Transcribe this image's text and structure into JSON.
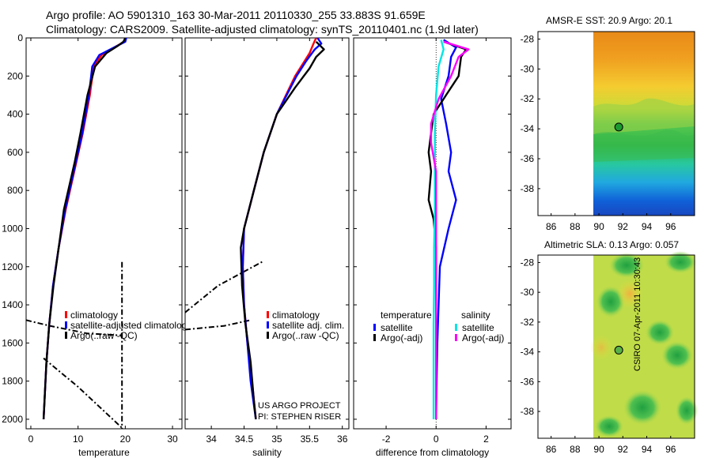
{
  "header": {
    "line1": "Argo profile: AO 5901310_163 30-Mar-2011 20110330_255 33.883S 91.659E",
    "line2": "Climatology: CARS2009. Satellite-adjusted climatology: synTS_20110401.nc (1.9d later)"
  },
  "credits": {
    "line1": "US ARGO PROJECT",
    "line2": "PI: STEPHEN RISER"
  },
  "timestamp": "CSIRO 07-Apr-2011 10:30:43",
  "maps": {
    "sst": {
      "title": "AMSR-E SST: 20.9 Argo: 20.1",
      "xticks": [
        "86",
        "88",
        "90",
        "92",
        "94",
        "96"
      ],
      "yticks": [
        "-28",
        "-30",
        "-32",
        "-34",
        "-36",
        "-38"
      ],
      "float_lon": 91.659,
      "float_lat": -33.883
    },
    "sla": {
      "title": "Altimetric SLA: 0.13 Argo: 0.057",
      "xticks": [
        "86",
        "88",
        "90",
        "92",
        "94",
        "96"
      ],
      "yticks": [
        "-28",
        "-30",
        "-32",
        "-34",
        "-36",
        "-38"
      ],
      "float_lon": 91.659,
      "float_lat": -33.883
    }
  },
  "colors": {
    "climatology": "#ff0000",
    "satellite": "#0000ff",
    "argo": "#000000",
    "sat_salinity": "#00e5e5",
    "argo_salinity": "#ff00ff"
  },
  "chart_data": [
    {
      "type": "line",
      "xlabel": "temperature",
      "xlim": [
        -1,
        32
      ],
      "ylim": [
        2050,
        0
      ],
      "xticks": [
        0,
        10,
        20,
        30
      ],
      "yticks": [
        0,
        200,
        400,
        600,
        800,
        1000,
        1200,
        1400,
        1600,
        1800,
        2000
      ],
      "legend": [
        "climatology",
        "satellite-adjusted climatology",
        "Argo(..raw -QC)"
      ],
      "series": [
        {
          "name": "climatology",
          "color": "#ff0000",
          "points": [
            [
              20.0,
              0
            ],
            [
              19.8,
              20
            ],
            [
              18.0,
              45
            ],
            [
              15.0,
              90
            ],
            [
              13.3,
              150
            ],
            [
              12.5,
              300
            ],
            [
              11.0,
              500
            ],
            [
              9.2,
              700
            ],
            [
              7.4,
              900
            ],
            [
              5.9,
              1100
            ],
            [
              4.7,
              1300
            ],
            [
              3.9,
              1500
            ],
            [
              3.3,
              1700
            ],
            [
              2.9,
              1900
            ],
            [
              2.7,
              2000
            ]
          ]
        },
        {
          "name": "satellite-adjusted climatology",
          "color": "#0000ff",
          "points": [
            [
              20.2,
              0
            ],
            [
              20.0,
              20
            ],
            [
              18.0,
              45
            ],
            [
              14.5,
              90
            ],
            [
              13.0,
              150
            ],
            [
              12.3,
              300
            ],
            [
              10.9,
              500
            ],
            [
              9.1,
              700
            ],
            [
              7.3,
              900
            ],
            [
              5.9,
              1100
            ],
            [
              4.7,
              1300
            ],
            [
              3.9,
              1500
            ],
            [
              3.3,
              1700
            ],
            [
              2.9,
              1900
            ],
            [
              2.7,
              2000
            ]
          ]
        },
        {
          "name": "Argo(..raw -QC)",
          "color": "#000000",
          "points": [
            [
              20.0,
              0
            ],
            [
              19.6,
              20
            ],
            [
              18.5,
              40
            ],
            [
              16.0,
              80
            ],
            [
              13.6,
              150
            ],
            [
              12.0,
              300
            ],
            [
              10.5,
              500
            ],
            [
              9.3,
              650
            ],
            [
              7.0,
              900
            ],
            [
              5.9,
              1100
            ],
            [
              4.8,
              1300
            ],
            [
              3.9,
              1500
            ],
            [
              3.3,
              1700
            ],
            [
              2.9,
              1900
            ],
            [
              2.7,
              2000
            ]
          ]
        }
      ],
      "raw": [
        [
          [
            19.3,
            1175
          ],
          [
            19.3,
            2050
          ]
        ],
        [
          [
            -1,
            1480
          ],
          [
            4,
            1510
          ],
          [
            12,
            1550
          ],
          [
            19,
            1560
          ]
        ],
        [
          [
            2.7,
            1680
          ],
          [
            10,
            1830
          ],
          [
            19.5,
            2050
          ]
        ]
      ]
    },
    {
      "type": "line",
      "xlabel": "salinity",
      "xlim": [
        33.6,
        36.1
      ],
      "ylim": [
        2050,
        0
      ],
      "xticks": [
        34,
        34.5,
        35,
        35.5,
        36
      ],
      "legend": [
        "climatology",
        "satellite adj. clim.",
        "Argo(..raw -QC)"
      ],
      "series": [
        {
          "name": "climatology",
          "color": "#ff0000",
          "points": [
            [
              35.6,
              0
            ],
            [
              35.56,
              30
            ],
            [
              35.5,
              80
            ],
            [
              35.28,
              200
            ],
            [
              35.0,
              400
            ],
            [
              34.8,
              600
            ],
            [
              34.65,
              800
            ],
            [
              34.5,
              1000
            ],
            [
              34.48,
              1200
            ],
            [
              34.5,
              1400
            ],
            [
              34.55,
              1600
            ],
            [
              34.62,
              1800
            ],
            [
              34.68,
              2000
            ]
          ]
        },
        {
          "name": "satellite adj. clim.",
          "color": "#0000ff",
          "points": [
            [
              35.62,
              0
            ],
            [
              35.68,
              30
            ],
            [
              35.58,
              60
            ],
            [
              35.45,
              120
            ],
            [
              35.3,
              200
            ],
            [
              35.0,
              400
            ],
            [
              34.8,
              600
            ],
            [
              34.65,
              800
            ],
            [
              34.5,
              1000
            ],
            [
              34.48,
              1200
            ],
            [
              34.5,
              1400
            ],
            [
              34.55,
              1600
            ],
            [
              34.6,
              1800
            ],
            [
              34.68,
              2000
            ]
          ]
        },
        {
          "name": "Argo(..raw -QC)",
          "color": "#000000",
          "points": [
            [
              35.6,
              20
            ],
            [
              35.72,
              60
            ],
            [
              35.6,
              100
            ],
            [
              35.5,
              160
            ],
            [
              35.28,
              260
            ],
            [
              35.0,
              400
            ],
            [
              34.8,
              600
            ],
            [
              34.65,
              800
            ],
            [
              34.5,
              1000
            ],
            [
              34.45,
              1100
            ],
            [
              34.47,
              1300
            ],
            [
              34.52,
              1500
            ],
            [
              34.6,
              1700
            ],
            [
              34.65,
              1900
            ],
            [
              34.68,
              2000
            ]
          ]
        }
      ],
      "raw": [
        [
          [
            33.6,
            1530
          ],
          [
            34.2,
            1510
          ],
          [
            34.6,
            1480
          ]
        ],
        [
          [
            33.6,
            1440
          ],
          [
            34.1,
            1300
          ],
          [
            34.8,
            1170
          ]
        ]
      ]
    },
    {
      "type": "line",
      "xlabel": "difference from climatology",
      "xlim": [
        -3.3,
        3.0
      ],
      "ylim": [
        2050,
        0
      ],
      "xticks": [
        -2,
        0,
        2
      ],
      "legend_titles": [
        "temperature",
        "salinity"
      ],
      "legend": [
        "satellite",
        "Argo(-adj)",
        "satellite",
        "Argo(-adj)"
      ],
      "series": [
        {
          "name": "satellite",
          "quantity": "temperature",
          "color": "#0000ff",
          "points": [
            [
              0.3,
              10
            ],
            [
              0.8,
              50
            ],
            [
              0.6,
              100
            ],
            [
              0.5,
              200
            ],
            [
              0.2,
              320
            ],
            [
              0.4,
              450
            ],
            [
              0.6,
              600
            ],
            [
              0.5,
              700
            ],
            [
              0.8,
              850
            ],
            [
              0.5,
              1000
            ],
            [
              0.15,
              1200
            ],
            [
              0.1,
              1400
            ],
            [
              0.05,
              1600
            ],
            [
              0.02,
              1800
            ],
            [
              0.0,
              2000
            ]
          ]
        },
        {
          "name": "Argo(-adj)",
          "quantity": "temperature",
          "color": "#000000",
          "points": [
            [
              0.3,
              20
            ],
            [
              1.2,
              60
            ],
            [
              1.0,
              100
            ],
            [
              0.9,
              200
            ],
            [
              0.4,
              300
            ],
            [
              -0.1,
              400
            ],
            [
              -0.2,
              500
            ],
            [
              -0.3,
              600
            ],
            [
              -0.2,
              700
            ],
            [
              -0.3,
              850
            ],
            [
              -0.1,
              950
            ],
            [
              0.0,
              1100
            ],
            [
              0.0,
              1300
            ],
            [
              0.0,
              1500
            ],
            [
              0.0,
              1700
            ],
            [
              0.0,
              2000
            ]
          ]
        },
        {
          "name": "satellite",
          "quantity": "salinity",
          "color": "#00e5e5",
          "points": [
            [
              0.2,
              10
            ],
            [
              0.3,
              60
            ],
            [
              0.1,
              150
            ],
            [
              0.0,
              300
            ],
            [
              -0.05,
              500
            ],
            [
              -0.05,
              700
            ],
            [
              -0.05,
              900
            ],
            [
              -0.08,
              1100
            ],
            [
              -0.08,
              1300
            ],
            [
              -0.1,
              1500
            ],
            [
              -0.1,
              1700
            ],
            [
              -0.1,
              1900
            ],
            [
              -0.1,
              2000
            ]
          ]
        },
        {
          "name": "Argo(-adj)",
          "quantity": "salinity",
          "color": "#ff00ff",
          "points": [
            [
              0.3,
              20
            ],
            [
              1.3,
              60
            ],
            [
              0.9,
              100
            ],
            [
              0.6,
              200
            ],
            [
              0.1,
              320
            ],
            [
              -0.2,
              450
            ],
            [
              -0.2,
              550
            ],
            [
              0.0,
              700
            ],
            [
              0.0,
              900
            ],
            [
              0.0,
              1100
            ],
            [
              0.0,
              1300
            ],
            [
              0.0,
              1500
            ],
            [
              0.0,
              1700
            ],
            [
              0.0,
              2000
            ]
          ]
        }
      ]
    }
  ]
}
